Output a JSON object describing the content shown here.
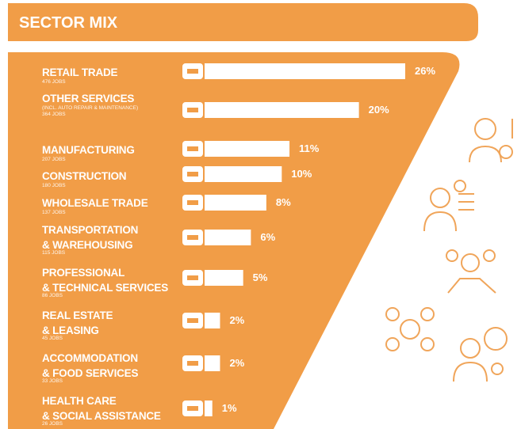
{
  "chart_data": {
    "type": "bar",
    "title": "SECTOR MIX",
    "categories": [
      "RETAIL TRADE",
      "OTHER SERVICES",
      "MANUFACTURING",
      "CONSTRUCTION",
      "WHOLESALE TRADE",
      "TRANSPORTATION\n& WAREHOUSING",
      "PROFESSIONAL\n& TECHNICAL SERVICES",
      "REAL ESTATE\n& LEASING",
      "ACCOMMODATION\n& FOOD SERVICES",
      "HEALTH CARE\n& SOCIAL ASSISTANCE"
    ],
    "notes": [
      null,
      "(INCL. AUTO REPAIR & MAINTENANCE)",
      null,
      null,
      null,
      null,
      null,
      null,
      null,
      null
    ],
    "jobs_labels": [
      "476 JOBS",
      "364 JOBS",
      "207 JOBS",
      "180 JOBS",
      "137 JOBS",
      "115 JOBS",
      "86 JOBS",
      "45 JOBS",
      "33 JOBS",
      "26 JOBS"
    ],
    "values": [
      26,
      20,
      11,
      10,
      8,
      6,
      5,
      2,
      2,
      1
    ],
    "value_labels": [
      "26%",
      "20%",
      "11%",
      "10%",
      "8%",
      "6%",
      "5%",
      "2%",
      "2%",
      "1%"
    ],
    "color": "#ffffff"
  }
}
